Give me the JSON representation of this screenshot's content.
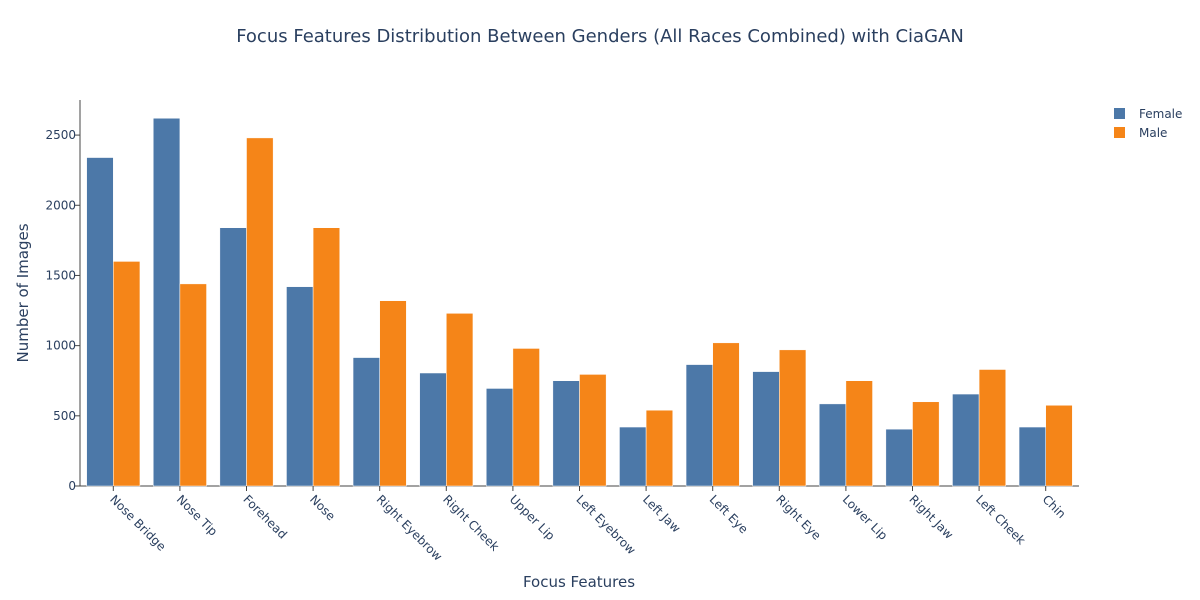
{
  "chart_data": {
    "type": "bar",
    "title": "Focus Features Distribution Between Genders (All Races Combined) with CiaGAN",
    "xlabel": "Focus Features",
    "ylabel": "Number of Images",
    "categories": [
      "Nose Bridge",
      "Nose Tip",
      "Forehead",
      "Nose",
      "Right Eyebrow",
      "Right Cheek",
      "Upper Lip",
      "Left Eyebrow",
      "Left Jaw",
      "Left Eye",
      "Right Eye",
      "Lower Lip",
      "Right Jaw",
      "Left Cheek",
      "Chin"
    ],
    "series": [
      {
        "name": "Female",
        "color": "#4c78a8",
        "values": [
          2340,
          2620,
          1840,
          1420,
          915,
          805,
          695,
          750,
          420,
          865,
          815,
          585,
          405,
          655,
          420
        ]
      },
      {
        "name": "Male",
        "color": "#f58518",
        "values": [
          1600,
          1440,
          2480,
          1840,
          1320,
          1230,
          980,
          795,
          540,
          1020,
          970,
          750,
          600,
          830,
          575
        ]
      }
    ],
    "ylim": [
      0,
      2750
    ],
    "yticks": [
      0,
      500,
      1000,
      1500,
      2000,
      2500
    ],
    "legend": "top-right",
    "grid": false
  }
}
